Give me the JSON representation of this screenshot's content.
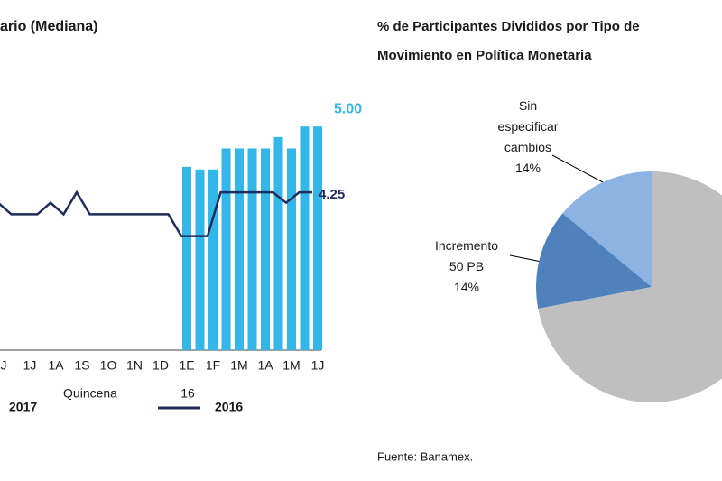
{
  "chart_data": [
    {
      "type": "bar",
      "title": "ario (Mediana)",
      "x_label": "Quincena",
      "annotations": [
        "16"
      ],
      "categories": [
        "J",
        null,
        "1J",
        null,
        "1A",
        null,
        "1S",
        null,
        "1O",
        null,
        "1N",
        null,
        "1D",
        null,
        "1E",
        null,
        "1F",
        null,
        "1M",
        null,
        "1A",
        null,
        "1M",
        null,
        "1J"
      ],
      "series": [
        {
          "name": "2017",
          "type": "bar",
          "color": "#33b7e9",
          "values": [
            null,
            null,
            null,
            null,
            null,
            null,
            null,
            null,
            null,
            null,
            null,
            null,
            null,
            null,
            4.54,
            4.51,
            4.51,
            4.75,
            4.75,
            4.75,
            4.75,
            4.88,
            4.75,
            5.0,
            5.0
          ],
          "value_labels": [
            null,
            null,
            null,
            null,
            null,
            null,
            null,
            null,
            null,
            null,
            null,
            null,
            null,
            null,
            null,
            null,
            null,
            null,
            null,
            null,
            null,
            null,
            null,
            null,
            "5.00"
          ]
        },
        {
          "name": "2016",
          "type": "line",
          "color": "#1f2d5c",
          "values": [
            4.13,
            4.0,
            4.0,
            4.0,
            4.13,
            4.0,
            4.25,
            4.0,
            4.0,
            4.0,
            4.0,
            4.0,
            4.0,
            4.0,
            3.75,
            3.75,
            3.75,
            4.25,
            4.25,
            4.25,
            4.25,
            4.25,
            4.13,
            4.25,
            4.25
          ],
          "value_labels": [
            null,
            null,
            null,
            null,
            null,
            null,
            null,
            null,
            null,
            null,
            null,
            null,
            null,
            null,
            null,
            null,
            null,
            null,
            null,
            null,
            null,
            null,
            null,
            null,
            "4.25"
          ]
        }
      ],
      "ylim": [
        2.45,
        5.3
      ]
    },
    {
      "type": "pie",
      "title": [
        "% de Participantes Divididos por Tipo de",
        "Movimiento en Política Monetaria"
      ],
      "categories": [
        "Sin\nespecificar\ncambios",
        "Incremento\n50 PB",
        null
      ],
      "values": [
        14,
        14,
        72
      ],
      "value_labels": [
        "14%",
        "14%",
        null
      ],
      "colors": [
        "#8db3e2",
        "#4f81bd",
        "#bfbfbf"
      ],
      "source": "Fuente: Banamex."
    }
  ]
}
